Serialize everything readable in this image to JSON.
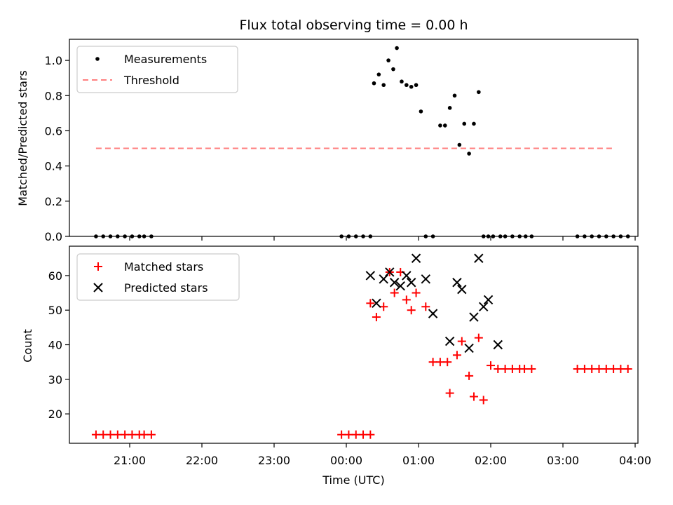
{
  "chart_data": [
    {
      "type": "scatter",
      "title": "Flux total observing time = 0.00 h",
      "ylabel": "Matched/Predicted stars",
      "xlabel": "",
      "ylim": [
        0.0,
        1.12
      ],
      "yticks": [
        "0.0",
        "0.2",
        "0.4",
        "0.6",
        "0.8",
        "1.0"
      ],
      "legend": {
        "position": "top-left",
        "entries": [
          "Measurements",
          "Threshold"
        ]
      },
      "series": [
        {
          "name": "Measurements",
          "marker": "dot",
          "color": "#000000",
          "x": [
            "20:32",
            "20:38",
            "20:44",
            "20:50",
            "20:56",
            "21:02",
            "21:08",
            "21:12",
            "21:18",
            "23:56",
            "00:02",
            "00:08",
            "00:14",
            "00:20",
            "00:23",
            "00:27",
            "00:31",
            "00:35",
            "00:39",
            "00:42",
            "00:46",
            "00:50",
            "00:54",
            "00:58",
            "01:02",
            "01:06",
            "01:12",
            "01:18",
            "01:22",
            "01:26",
            "01:30",
            "01:34",
            "01:38",
            "01:42",
            "01:46",
            "01:50",
            "01:54",
            "01:58",
            "02:02",
            "02:08",
            "02:12",
            "02:18",
            "02:24",
            "02:29",
            "02:34",
            "03:12",
            "03:18",
            "03:24",
            "03:30",
            "03:36",
            "03:42",
            "03:48",
            "03:54"
          ],
          "y": [
            0,
            0,
            0,
            0,
            0,
            0,
            0,
            0,
            0,
            0,
            0,
            0,
            0,
            0,
            0.87,
            0.92,
            0.86,
            1.0,
            0.95,
            1.07,
            0.88,
            0.86,
            0.85,
            0.86,
            0.71,
            0,
            0,
            0.63,
            0.63,
            0.73,
            0.8,
            0.52,
            0.64,
            0.47,
            0.64,
            0.82,
            0,
            0,
            0,
            0,
            0,
            0,
            0,
            0,
            0,
            0,
            0,
            0,
            0,
            0,
            0,
            0,
            0
          ]
        },
        {
          "name": "Threshold",
          "type": "line",
          "dash": "dashed",
          "color": "#ff7f7f",
          "x": [
            "20:32",
            "03:42"
          ],
          "y": [
            0.5,
            0.5
          ]
        }
      ]
    },
    {
      "type": "scatter",
      "title": "",
      "ylabel": "Count",
      "xlabel": "Time (UTC)",
      "ylim": [
        11.5,
        68.5
      ],
      "yticks": [
        "20",
        "30",
        "40",
        "50",
        "60"
      ],
      "xticks": [
        "21:00",
        "22:00",
        "23:00",
        "00:00",
        "01:00",
        "02:00",
        "03:00",
        "04:00"
      ],
      "legend": {
        "position": "top-left",
        "entries": [
          "Matched stars",
          "Predicted stars"
        ]
      },
      "series": [
        {
          "name": "Matched stars",
          "marker": "plus",
          "color": "#ff0000",
          "x": [
            "20:32",
            "20:38",
            "20:44",
            "20:50",
            "20:56",
            "21:02",
            "21:08",
            "21:12",
            "21:18",
            "23:56",
            "00:02",
            "00:08",
            "00:14",
            "00:20",
            "00:20",
            "00:25",
            "00:31",
            "00:36",
            "00:40",
            "00:45",
            "00:50",
            "00:54",
            "00:58",
            "01:06",
            "01:12",
            "01:18",
            "01:24",
            "01:26",
            "01:32",
            "01:36",
            "01:42",
            "01:46",
            "01:50",
            "01:54",
            "02:00",
            "02:06",
            "02:12",
            "02:18",
            "02:24",
            "02:28",
            "02:34",
            "03:12",
            "03:18",
            "03:24",
            "03:30",
            "03:36",
            "03:42",
            "03:48",
            "03:54"
          ],
          "y": [
            14,
            14,
            14,
            14,
            14,
            14,
            14,
            14,
            14,
            14,
            14,
            14,
            14,
            14,
            52,
            48,
            51,
            61,
            55,
            61,
            53,
            50,
            55,
            51,
            35,
            35,
            35,
            26,
            37,
            41,
            31,
            25,
            42,
            24,
            34,
            33,
            33,
            33,
            33,
            33,
            33,
            33,
            33,
            33,
            33,
            33,
            33,
            33,
            33
          ]
        },
        {
          "name": "Predicted stars",
          "marker": "x",
          "color": "#000000",
          "x": [
            "00:20",
            "00:25",
            "00:31",
            "00:36",
            "00:40",
            "00:45",
            "00:50",
            "00:54",
            "00:58",
            "01:06",
            "01:12",
            "01:26",
            "01:32",
            "01:36",
            "01:42",
            "01:46",
            "01:50",
            "01:54",
            "01:58",
            "02:06"
          ],
          "y": [
            60,
            52,
            59,
            61,
            58,
            57,
            60,
            58,
            65,
            59,
            49,
            41,
            58,
            56,
            39,
            48,
            65,
            51,
            53,
            40
          ]
        }
      ]
    }
  ]
}
